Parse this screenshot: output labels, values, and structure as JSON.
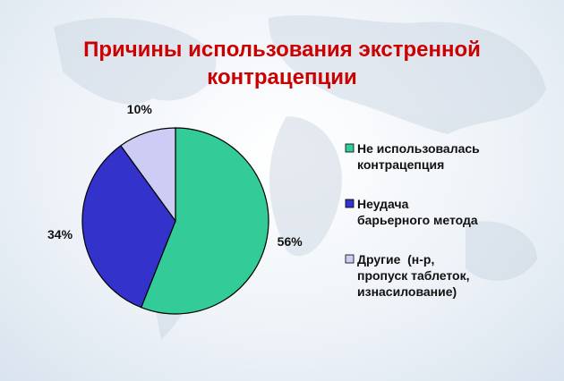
{
  "chart_data": {
    "type": "pie",
    "title": "Причины использования экстренной\nконтрацепции",
    "categories": [
      "Не использовалась\nконтрацепция",
      "Неудача\nбарьерного метода",
      "Другие  (н-р,\nпропуск таблеток,\nизнасилование)"
    ],
    "values": [
      56,
      34,
      10
    ],
    "value_labels": [
      "56%",
      "34%",
      "10%"
    ],
    "colors": [
      "#33cc99",
      "#3333cc",
      "#ccccf5"
    ],
    "legend": "right"
  }
}
